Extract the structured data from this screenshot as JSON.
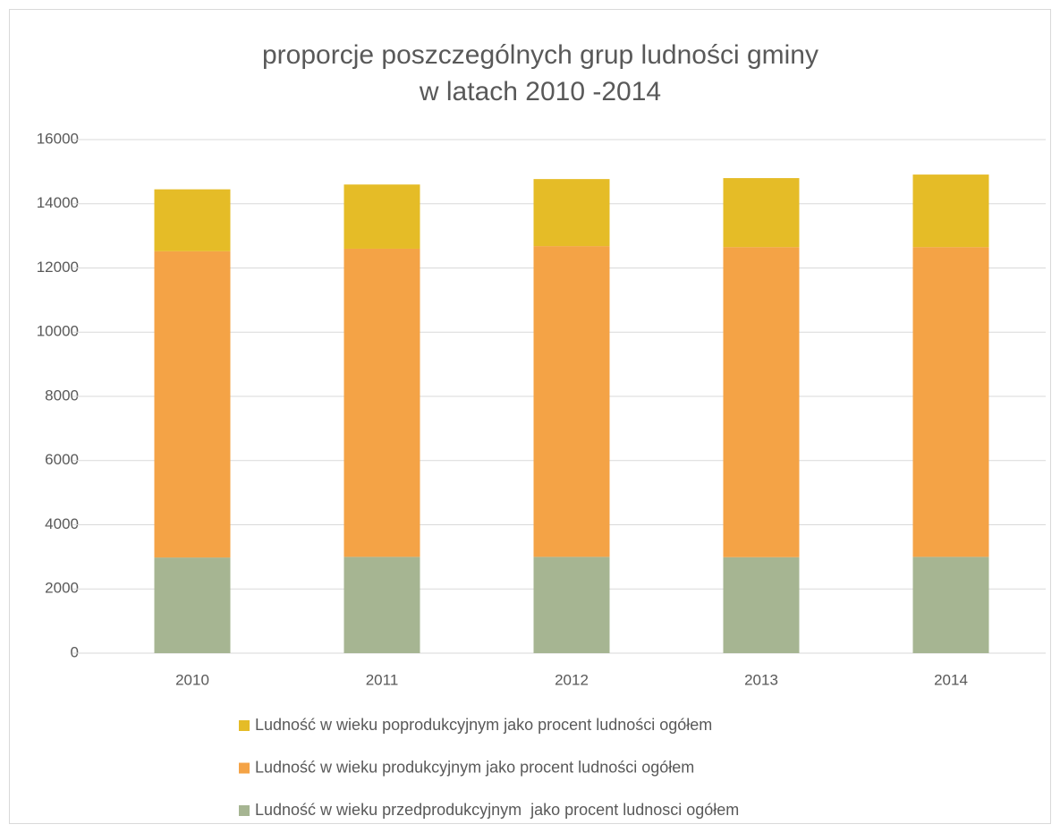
{
  "chart_data": {
    "type": "stacked_bar",
    "title": [
      "proporcje poszczególnych grup ludności gminy",
      "w latach 2010 -2014"
    ],
    "categories": [
      "2010",
      "2011",
      "2012",
      "2013",
      "2014"
    ],
    "series": [
      {
        "name": "Ludność w wieku przedprodukcyjnym  jako procent ludnosci ogółem",
        "color": "#a6b592",
        "values": [
          2980,
          3000,
          3000,
          2990,
          3000
        ]
      },
      {
        "name": "Ludność w wieku produkcyjnym jako procent ludności ogółem",
        "color": "#f4a346",
        "values": [
          9540,
          9600,
          9680,
          9660,
          9650
        ]
      },
      {
        "name": "Ludność w wieku poprodukcyjnym jako procent ludności ogółem",
        "color": "#e5bc27",
        "values": [
          1930,
          2000,
          2090,
          2150,
          2260
        ]
      }
    ],
    "ylim": [
      0,
      16000
    ],
    "yticks": [
      0,
      2000,
      4000,
      6000,
      8000,
      10000,
      12000,
      14000,
      16000
    ],
    "grid": true,
    "legend": "bottom"
  }
}
